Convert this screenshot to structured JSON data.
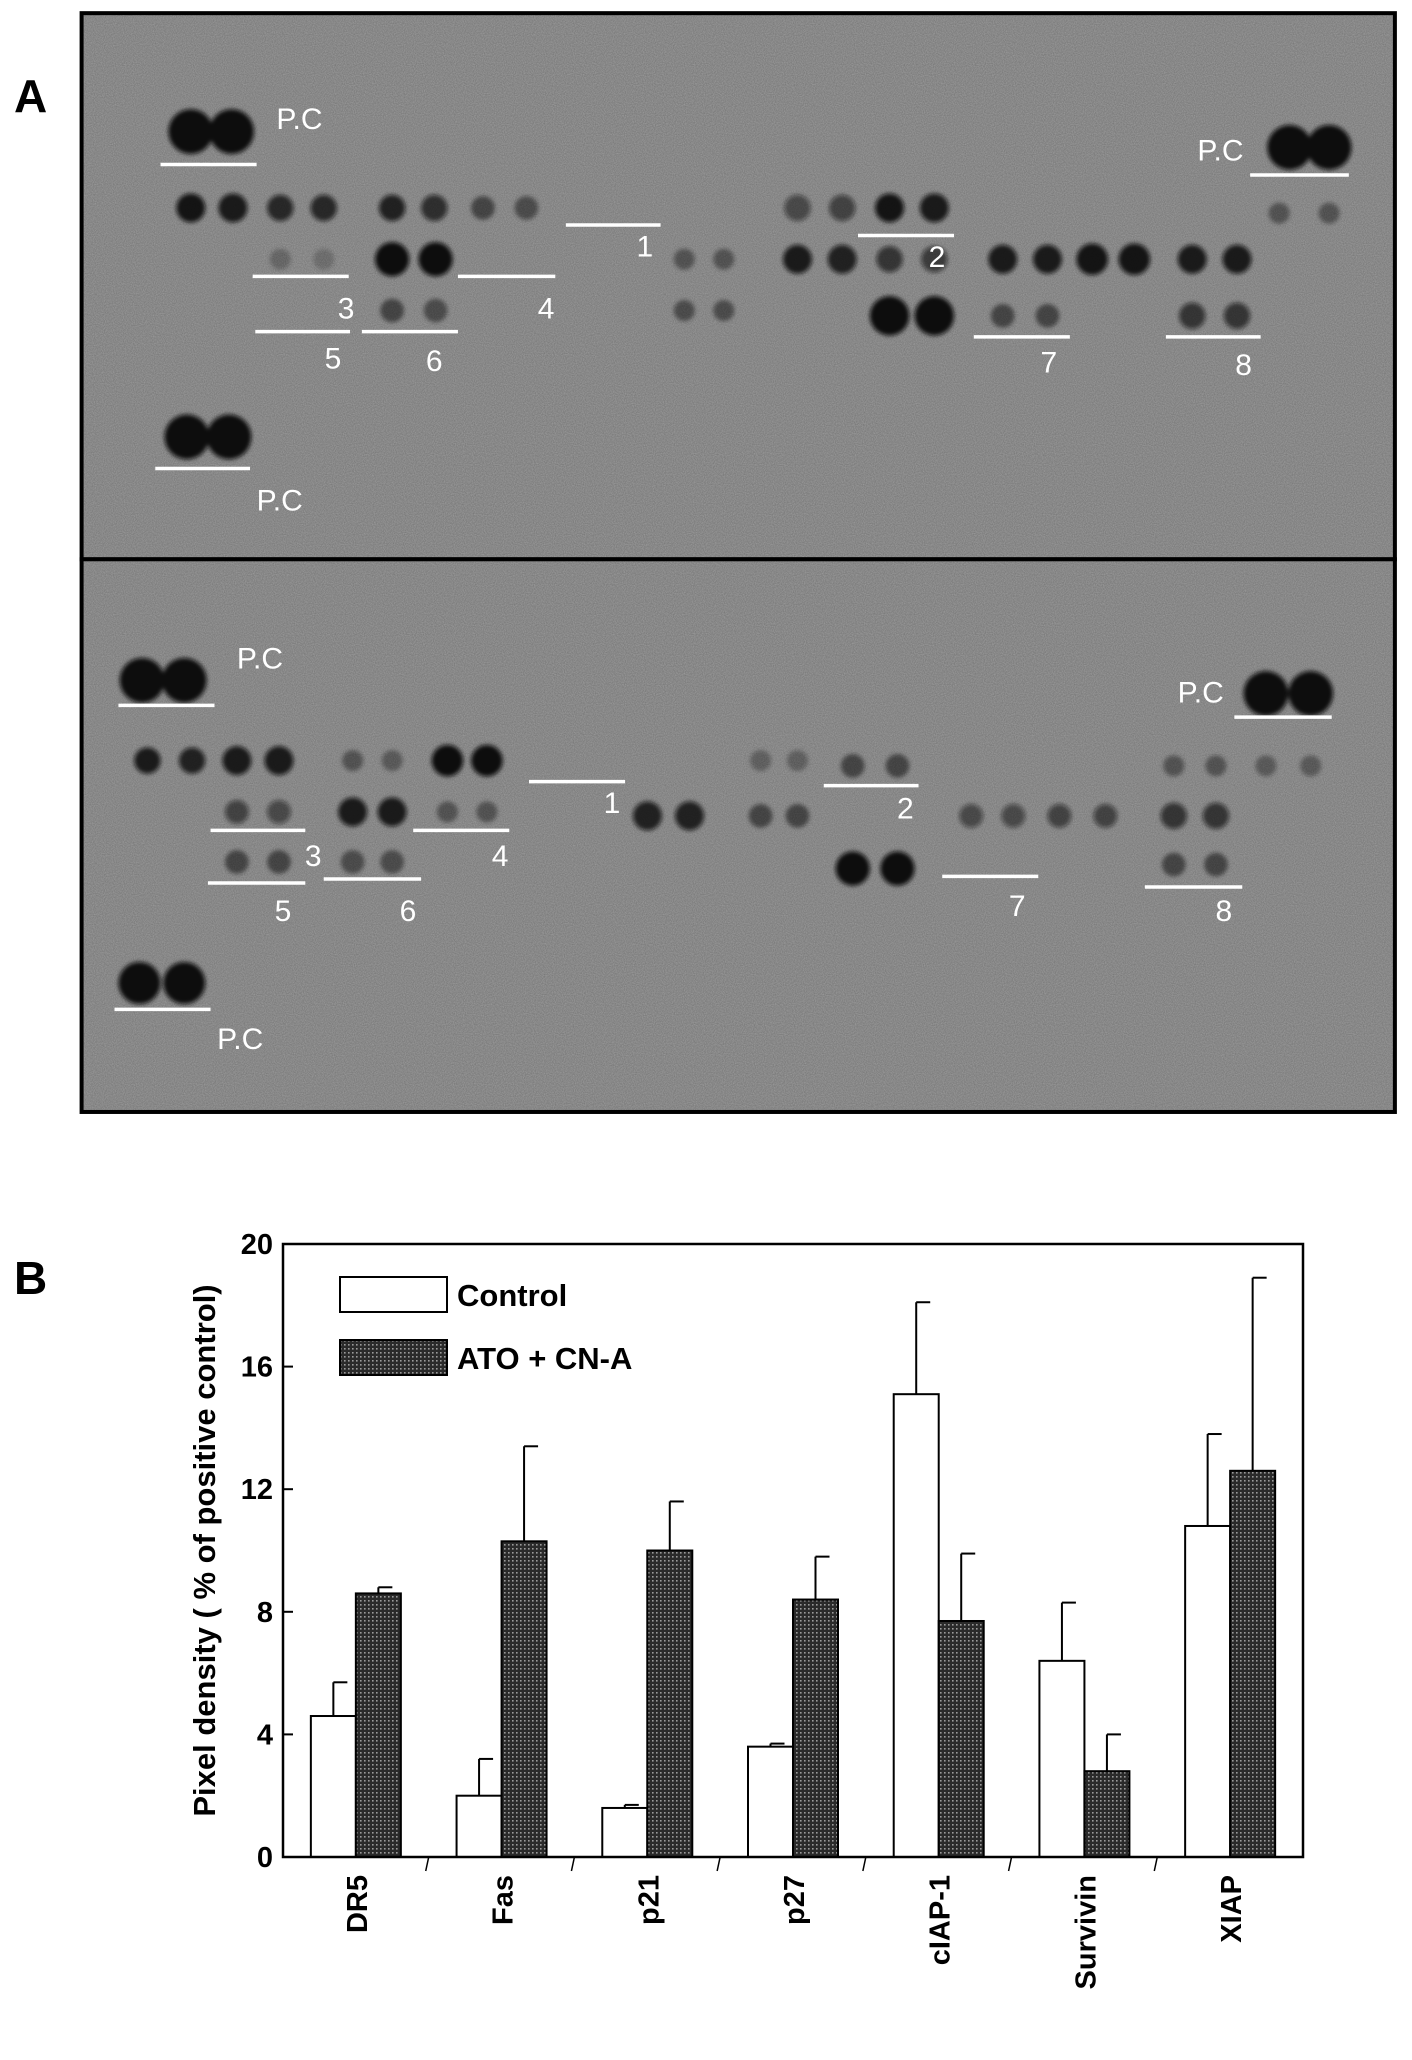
{
  "panel_a": {
    "label": "A",
    "blots": [
      {
        "pc_labels": [
          "P.C",
          "P.C",
          "P.C"
        ],
        "spot_labels": [
          "1",
          "2",
          "3",
          "4",
          "5",
          "6",
          "7",
          "8"
        ]
      },
      {
        "pc_labels": [
          "P.C",
          "P.C",
          "P.C"
        ],
        "spot_labels": [
          "1",
          "2",
          "3",
          "4",
          "5",
          "6",
          "7",
          "8"
        ]
      }
    ]
  },
  "chart_data": {
    "type": "bar",
    "panel_label": "B",
    "y_label": "Pixel density ( % of positive control)",
    "categories": [
      "DR5",
      "Fas",
      "p21",
      "p27",
      "cIAP-1",
      "Survivin",
      "XIAP"
    ],
    "series": [
      {
        "name": "Control",
        "color": "#ffffff",
        "values": [
          4.6,
          2.0,
          1.6,
          3.6,
          15.1,
          6.4,
          10.8
        ],
        "errors": [
          1.1,
          1.2,
          0.1,
          0.1,
          3.0,
          1.9,
          3.0
        ]
      },
      {
        "name": "ATO + CN-A",
        "color": "#3c3c3c",
        "values": [
          8.6,
          10.3,
          10.0,
          8.4,
          7.7,
          2.8,
          12.6
        ],
        "errors": [
          0.2,
          3.1,
          1.6,
          1.4,
          2.2,
          1.2,
          6.3
        ]
      }
    ],
    "ylim": [
      0,
      20
    ],
    "yticks": [
      0,
      4,
      8,
      12,
      16,
      20
    ]
  }
}
